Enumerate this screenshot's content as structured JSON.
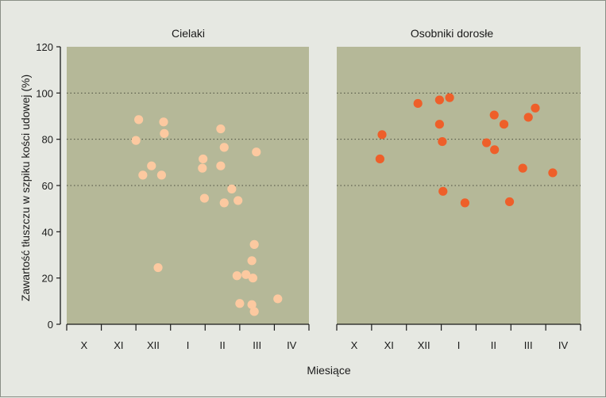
{
  "chart_data": {
    "type": "scatter",
    "ylabel": "Zawartość tłuszczu w szpiku kości udowej (%)",
    "xlabel": "Miesiące",
    "ylim": [
      0,
      120
    ],
    "yticks": [
      "0",
      "20",
      "40",
      "60",
      "80",
      "100",
      "120"
    ],
    "months": [
      "X",
      "XI",
      "XII",
      "I",
      "II",
      "III",
      "IV"
    ],
    "grid": "dotted horizontal lines at 60, 80 and 100",
    "colors": {
      "plot_bg": "#b5b898",
      "background": "#e6e8e2",
      "cielaki": "#fcc9a0",
      "dorosle": "#ee5f2a"
    },
    "panels": [
      {
        "title": "Cielaki",
        "points": [
          {
            "x": 2.08,
            "y": 88.5
          },
          {
            "x": 2.0,
            "y": 79.5
          },
          {
            "x": 2.2,
            "y": 64.5
          },
          {
            "x": 2.45,
            "y": 68.5
          },
          {
            "x": 2.8,
            "y": 87.5
          },
          {
            "x": 2.82,
            "y": 82.5
          },
          {
            "x": 2.74,
            "y": 64.5
          },
          {
            "x": 2.64,
            "y": 24.5
          },
          {
            "x": 3.94,
            "y": 71.5
          },
          {
            "x": 3.92,
            "y": 67.5
          },
          {
            "x": 3.98,
            "y": 54.5
          },
          {
            "x": 4.45,
            "y": 84.5
          },
          {
            "x": 4.55,
            "y": 76.5
          },
          {
            "x": 4.45,
            "y": 68.5
          },
          {
            "x": 4.55,
            "y": 52.5
          },
          {
            "x": 4.77,
            "y": 58.5
          },
          {
            "x": 4.95,
            "y": 53.5
          },
          {
            "x": 5.48,
            "y": 74.5
          },
          {
            "x": 4.92,
            "y": 21.0
          },
          {
            "x": 5.18,
            "y": 21.5
          },
          {
            "x": 5.35,
            "y": 27.5
          },
          {
            "x": 5.38,
            "y": 20.0
          },
          {
            "x": 5.42,
            "y": 34.5
          },
          {
            "x": 5.0,
            "y": 9.0
          },
          {
            "x": 5.35,
            "y": 8.5
          },
          {
            "x": 5.42,
            "y": 5.5
          },
          {
            "x": 6.1,
            "y": 11.0
          }
        ]
      },
      {
        "title": "Osobniki dorosłe",
        "points": [
          {
            "x": 1.3,
            "y": 82.0
          },
          {
            "x": 1.24,
            "y": 71.5
          },
          {
            "x": 2.33,
            "y": 95.5
          },
          {
            "x": 2.95,
            "y": 97.0
          },
          {
            "x": 3.24,
            "y": 98.0
          },
          {
            "x": 2.95,
            "y": 86.5
          },
          {
            "x": 3.03,
            "y": 79.0
          },
          {
            "x": 3.05,
            "y": 57.5
          },
          {
            "x": 3.68,
            "y": 52.5
          },
          {
            "x": 4.52,
            "y": 90.5
          },
          {
            "x": 4.8,
            "y": 86.5
          },
          {
            "x": 4.3,
            "y": 78.5
          },
          {
            "x": 4.53,
            "y": 75.5
          },
          {
            "x": 4.96,
            "y": 53.0
          },
          {
            "x": 5.34,
            "y": 67.5
          },
          {
            "x": 5.5,
            "y": 89.5
          },
          {
            "x": 5.7,
            "y": 93.5
          },
          {
            "x": 6.2,
            "y": 65.5
          }
        ]
      }
    ]
  }
}
